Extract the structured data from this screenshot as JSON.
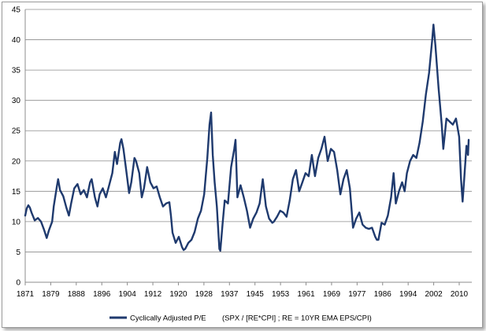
{
  "chart_data": {
    "type": "line",
    "series": [
      {
        "name": "Cyclically Adjusted P/E",
        "color": "#1f3a6e",
        "points": [
          [
            1871.0,
            11.0
          ],
          [
            1871.5,
            12.2
          ],
          [
            1872.0,
            12.7
          ],
          [
            1872.5,
            12.3
          ],
          [
            1873.0,
            11.5
          ],
          [
            1874.0,
            10.2
          ],
          [
            1875.0,
            10.6
          ],
          [
            1876.0,
            10.0
          ],
          [
            1877.0,
            8.6
          ],
          [
            1877.8,
            7.3
          ],
          [
            1878.5,
            8.6
          ],
          [
            1879.5,
            10.0
          ],
          [
            1880.0,
            12.5
          ],
          [
            1881.0,
            15.8
          ],
          [
            1881.4,
            17.0
          ],
          [
            1882.0,
            15.2
          ],
          [
            1883.0,
            14.2
          ],
          [
            1884.0,
            12.3
          ],
          [
            1884.8,
            11.0
          ],
          [
            1885.5,
            13.0
          ],
          [
            1886.5,
            15.5
          ],
          [
            1887.5,
            16.2
          ],
          [
            1888.5,
            14.5
          ],
          [
            1889.5,
            15.2
          ],
          [
            1890.5,
            14.0
          ],
          [
            1891.5,
            16.5
          ],
          [
            1892.0,
            17.0
          ],
          [
            1893.0,
            14.0
          ],
          [
            1893.8,
            12.5
          ],
          [
            1894.5,
            14.5
          ],
          [
            1895.5,
            15.5
          ],
          [
            1896.5,
            14.0
          ],
          [
            1897.5,
            16.0
          ],
          [
            1898.5,
            18.0
          ],
          [
            1899.3,
            21.5
          ],
          [
            1900.0,
            19.5
          ],
          [
            1901.0,
            23.0
          ],
          [
            1901.4,
            23.6
          ],
          [
            1902.0,
            22.0
          ],
          [
            1903.0,
            18.0
          ],
          [
            1903.8,
            14.7
          ],
          [
            1904.5,
            16.5
          ],
          [
            1905.5,
            20.5
          ],
          [
            1906.0,
            20.0
          ],
          [
            1907.0,
            18.0
          ],
          [
            1907.8,
            14.0
          ],
          [
            1908.5,
            15.5
          ],
          [
            1909.5,
            19.0
          ],
          [
            1910.5,
            16.5
          ],
          [
            1911.5,
            15.5
          ],
          [
            1912.5,
            15.8
          ],
          [
            1913.5,
            14.0
          ],
          [
            1914.5,
            12.5
          ],
          [
            1915.5,
            13.0
          ],
          [
            1916.5,
            13.2
          ],
          [
            1917.0,
            11.0
          ],
          [
            1917.5,
            8.2
          ],
          [
            1918.5,
            6.5
          ],
          [
            1919.5,
            7.5
          ],
          [
            1920.5,
            5.8
          ],
          [
            1921.0,
            5.3
          ],
          [
            1921.5,
            5.5
          ],
          [
            1922.5,
            6.5
          ],
          [
            1923.5,
            7.0
          ],
          [
            1924.5,
            8.3
          ],
          [
            1925.5,
            10.5
          ],
          [
            1926.5,
            11.8
          ],
          [
            1927.5,
            14.5
          ],
          [
            1928.5,
            20.5
          ],
          [
            1929.2,
            26.0
          ],
          [
            1929.7,
            28.0
          ],
          [
            1930.2,
            21.0
          ],
          [
            1930.8,
            16.5
          ],
          [
            1931.5,
            12.5
          ],
          [
            1932.3,
            5.5
          ],
          [
            1932.6,
            5.2
          ],
          [
            1933.3,
            9.5
          ],
          [
            1934.0,
            13.5
          ],
          [
            1935.0,
            13.0
          ],
          [
            1936.0,
            19.0
          ],
          [
            1937.0,
            22.0
          ],
          [
            1937.4,
            23.5
          ],
          [
            1938.0,
            14.0
          ],
          [
            1939.0,
            16.0
          ],
          [
            1940.0,
            14.0
          ],
          [
            1941.0,
            11.8
          ],
          [
            1942.0,
            9.0
          ],
          [
            1943.0,
            10.5
          ],
          [
            1944.0,
            11.5
          ],
          [
            1945.0,
            13.0
          ],
          [
            1946.0,
            17.0
          ],
          [
            1947.0,
            12.5
          ],
          [
            1948.0,
            10.5
          ],
          [
            1949.0,
            9.8
          ],
          [
            1949.5,
            10.0
          ],
          [
            1950.5,
            10.8
          ],
          [
            1951.5,
            11.8
          ],
          [
            1952.5,
            11.5
          ],
          [
            1953.5,
            10.8
          ],
          [
            1954.5,
            13.5
          ],
          [
            1955.5,
            17.0
          ],
          [
            1956.5,
            18.5
          ],
          [
            1957.5,
            15.0
          ],
          [
            1958.5,
            16.5
          ],
          [
            1959.5,
            18.0
          ],
          [
            1960.5,
            17.5
          ],
          [
            1961.5,
            21.0
          ],
          [
            1962.5,
            17.5
          ],
          [
            1963.5,
            20.5
          ],
          [
            1964.5,
            22.0
          ],
          [
            1965.5,
            24.0
          ],
          [
            1966.5,
            20.0
          ],
          [
            1967.5,
            22.0
          ],
          [
            1968.5,
            21.5
          ],
          [
            1969.5,
            18.5
          ],
          [
            1970.5,
            14.5
          ],
          [
            1971.5,
            17.0
          ],
          [
            1972.5,
            18.5
          ],
          [
            1973.5,
            15.5
          ],
          [
            1974.5,
            9.0
          ],
          [
            1975.5,
            10.5
          ],
          [
            1976.5,
            11.5
          ],
          [
            1977.5,
            9.5
          ],
          [
            1978.5,
            9.0
          ],
          [
            1979.5,
            8.8
          ],
          [
            1980.5,
            9.0
          ],
          [
            1981.5,
            7.5
          ],
          [
            1982.0,
            7.0
          ],
          [
            1982.5,
            7.0
          ],
          [
            1983.5,
            9.8
          ],
          [
            1984.5,
            9.5
          ],
          [
            1985.5,
            11.0
          ],
          [
            1986.5,
            14.0
          ],
          [
            1987.3,
            18.0
          ],
          [
            1988.0,
            13.0
          ],
          [
            1989.0,
            15.0
          ],
          [
            1990.0,
            16.5
          ],
          [
            1990.8,
            15.0
          ],
          [
            1991.5,
            18.0
          ],
          [
            1992.5,
            20.0
          ],
          [
            1993.5,
            21.0
          ],
          [
            1994.5,
            20.5
          ],
          [
            1995.5,
            23.0
          ],
          [
            1996.5,
            26.5
          ],
          [
            1997.5,
            31.0
          ],
          [
            1998.5,
            34.5
          ],
          [
            1999.5,
            40.0
          ],
          [
            1999.9,
            42.5
          ],
          [
            2000.5,
            39.0
          ],
          [
            2001.5,
            32.0
          ],
          [
            2002.5,
            26.0
          ],
          [
            2003.0,
            22.0
          ],
          [
            2004.0,
            27.0
          ],
          [
            2005.0,
            26.5
          ],
          [
            2006.0,
            26.0
          ],
          [
            2007.0,
            27.0
          ],
          [
            2008.0,
            24.0
          ],
          [
            2008.6,
            17.0
          ],
          [
            2009.1,
            13.3
          ],
          [
            2009.6,
            17.0
          ],
          [
            2010.3,
            22.5
          ],
          [
            2010.8,
            21.0
          ],
          [
            2011.0,
            23.5
          ]
        ]
      }
    ],
    "xlim": [
      1871,
      2012
    ],
    "ylim": [
      0,
      45
    ],
    "x_tick_labels": [
      "1871",
      "1879",
      "1888",
      "1896",
      "1904",
      "1912",
      "1920",
      "1928",
      "1937",
      "1945",
      "1953",
      "1961",
      "1969",
      "1977",
      "1986",
      "1994",
      "2002",
      "2010"
    ],
    "y_tick_labels": [
      "0",
      "5",
      "10",
      "15",
      "20",
      "25",
      "30",
      "35",
      "40",
      "45"
    ],
    "y_ticks": [
      0,
      5,
      10,
      15,
      20,
      25,
      30,
      35,
      40,
      45
    ],
    "grid": "horizontal",
    "legend_position": "bottom",
    "legend_label": "Cyclically Adjusted P/E",
    "legend_note": "(SPX / [RE*CPI] ; RE = 10YR EMA EPS/CPI)",
    "title": "",
    "xlabel": "",
    "ylabel": ""
  }
}
